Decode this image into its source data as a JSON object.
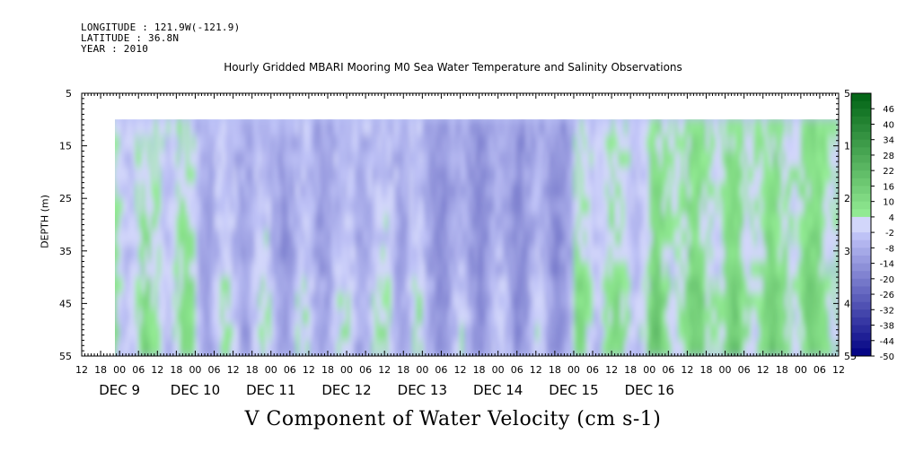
{
  "header": {
    "longitude": "LONGITUDE : 121.9W(-121.9)",
    "latitude": "LATITUDE : 36.8N",
    "year": "YEAR : 2010"
  },
  "chart_data": {
    "type": "heatmap",
    "title": "Hourly Gridded MBARI Mooring M0 Sea Water Temperature and Salinity Observations",
    "xlabel": "V Component of Water Velocity (cm s-1)",
    "ylabel": "DEPTH (m)",
    "y_ticks": [
      "5",
      "15",
      "25",
      "35",
      "45",
      "55"
    ],
    "ylim": [
      55,
      5
    ],
    "x_hour_ticks": [
      "12",
      "18",
      "00",
      "06",
      "12",
      "18",
      "00",
      "06",
      "12",
      "18",
      "00",
      "06",
      "12",
      "18",
      "00",
      "06",
      "12",
      "18",
      "00",
      "06",
      "12",
      "18",
      "00",
      "06",
      "12",
      "18",
      "00",
      "06",
      "12",
      "18",
      "00",
      "06",
      "12",
      "18",
      "00",
      "06",
      "12",
      "18",
      "00",
      "06",
      "12"
    ],
    "x_date_labels": [
      "DEC  9",
      "DEC 10",
      "DEC 11",
      "DEC 12",
      "DEC 13",
      "DEC 14",
      "DEC 15",
      "DEC 16"
    ],
    "x_range": [
      "DEC 8 12:00",
      "DEC 16 12:00"
    ],
    "data_start": "DEC 8 18:00",
    "data_depth_range": [
      10,
      55
    ],
    "colorbar": {
      "labels": [
        "46",
        "40",
        "34",
        "28",
        "22",
        "16",
        "10",
        "4",
        "-2",
        "-8",
        "-14",
        "-20",
        "-26",
        "-32",
        "-38",
        "-44",
        "-50"
      ],
      "range": [
        -50,
        52
      ],
      "step": 3
    },
    "cells": [
      {
        "day": "DEC 8",
        "v_mean": 3
      },
      {
        "day": "DEC 9",
        "v_mean": 1
      },
      {
        "day": "DEC 10",
        "v_mean": -6
      },
      {
        "day": "DEC 11",
        "v_mean": -8
      },
      {
        "day": "DEC 12",
        "v_mean": -5
      },
      {
        "day": "DEC 13",
        "v_mean": -12
      },
      {
        "day": "DEC 14",
        "v_mean": -11
      },
      {
        "day": "DEC 15",
        "v_mean": 1
      },
      {
        "day": "DEC 16",
        "v_mean": 6
      }
    ]
  }
}
